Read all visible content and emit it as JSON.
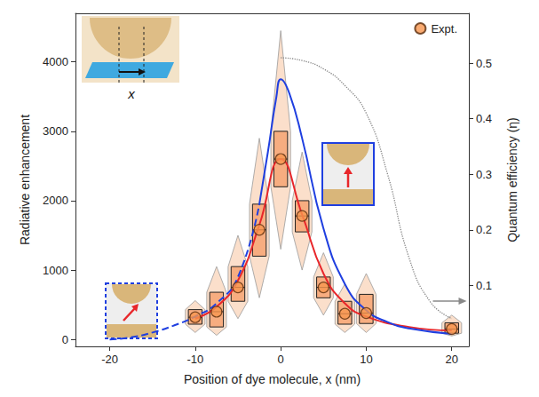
{
  "chart_data": {
    "type": "line",
    "x_label": "Position of dye molecule, x (nm)",
    "y_label": "Radiative enhancement",
    "y2_label": "Quantum efficiency (η)",
    "xlim": [
      -24,
      22
    ],
    "xticks": [
      -20,
      -10,
      0,
      10,
      20
    ],
    "ylim": [
      -100,
      4700
    ],
    "yticks": [
      0,
      1000,
      2000,
      3000,
      4000
    ],
    "y2lim": [
      -0.01,
      0.59
    ],
    "y2ticks": [
      0.1,
      0.2,
      0.3,
      0.4,
      0.5
    ],
    "grid": false,
    "legend": "upper right",
    "annotations": [
      "x"
    ],
    "series": [
      {
        "name": "Expt.",
        "type": "scatter",
        "marker": "circle",
        "color": "#f7964f",
        "x": [
          -10,
          -7.5,
          -5,
          -2.5,
          0,
          2.5,
          5,
          7.5,
          10,
          20
        ],
        "values": [
          320,
          400,
          750,
          1580,
          2600,
          1780,
          750,
          370,
          380,
          150
        ],
        "box_stats": [
          [
            100,
            220,
            320,
            430,
            560
          ],
          [
            60,
            180,
            400,
            680,
            1050
          ],
          [
            300,
            550,
            750,
            1050,
            1500
          ],
          [
            600,
            1200,
            1580,
            1950,
            2900
          ],
          [
            1300,
            2200,
            2600,
            3000,
            4450
          ],
          [
            1000,
            1550,
            1780,
            2000,
            2700
          ],
          [
            350,
            600,
            750,
            900,
            1250
          ],
          [
            100,
            220,
            370,
            550,
            800
          ],
          [
            100,
            230,
            380,
            650,
            950
          ],
          [
            50,
            90,
            150,
            240,
            350
          ]
        ]
      },
      {
        "type": "line",
        "color": "#e8262a",
        "line_style": "solid",
        "x": [
          -10,
          -7.5,
          -5,
          -2.5,
          0,
          2.5,
          5,
          7.5,
          10,
          15,
          20
        ],
        "values": [
          300,
          470,
          850,
          1650,
          2600,
          1800,
          950,
          520,
          330,
          180,
          130
        ]
      },
      {
        "type": "line",
        "color": "#1f3fe0",
        "line_style": "solid",
        "x": [
          -2.5,
          -1.5,
          -0.5,
          0,
          1,
          2.5,
          5,
          7.5,
          10,
          12.5,
          15,
          20
        ],
        "values": [
          1950,
          2700,
          3500,
          3750,
          3550,
          2900,
          1600,
          800,
          420,
          250,
          160,
          80
        ]
      },
      {
        "type": "line",
        "color": "#1f3fe0",
        "line_style": "dashed",
        "x": [
          -20,
          -17.5,
          -15,
          -12.5,
          -10,
          -7.5,
          -5,
          -2.5
        ],
        "values": [
          0,
          30,
          100,
          200,
          330,
          520,
          900,
          1950
        ]
      },
      {
        "type": "line",
        "color": "#888888",
        "line_style": "dotted",
        "axis": "y2",
        "x": [
          0,
          2.5,
          5,
          7.5,
          10,
          12.5,
          15,
          17.5,
          20
        ],
        "values": [
          0.51,
          0.505,
          0.49,
          0.46,
          0.41,
          0.3,
          0.15,
          0.07,
          0.04
        ]
      }
    ]
  }
}
